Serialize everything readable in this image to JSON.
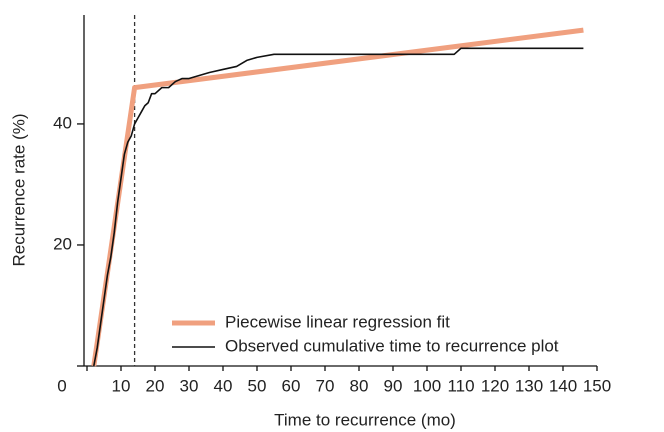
{
  "chart_data": {
    "type": "line",
    "x_label": "Time to recurrence (mo)",
    "y_label": "Recurrence rate (%)",
    "xlim": [
      0,
      150
    ],
    "ylim": [
      0,
      58
    ],
    "xticks": [
      0,
      10,
      20,
      30,
      40,
      50,
      60,
      70,
      80,
      90,
      100,
      110,
      120,
      130,
      140,
      150
    ],
    "yticks": [
      0,
      20,
      40
    ],
    "breakpoint": 14,
    "series": [
      {
        "name": "Piecewise linear regression fit",
        "color": "#f0a07f",
        "width": 5,
        "x": [
          2,
          14,
          146
        ],
        "values": [
          0,
          46,
          55.5
        ]
      },
      {
        "name": "Observed cumulative time to recurrence plot",
        "color": "#111111",
        "width": 1.6,
        "x": [
          2,
          3,
          4,
          5,
          6,
          7,
          8,
          9,
          10,
          11,
          12,
          13,
          14,
          15,
          16,
          17,
          18,
          19,
          20,
          22,
          24,
          26,
          28,
          30,
          33,
          36,
          40,
          44,
          47,
          50,
          55,
          60,
          80,
          100,
          108,
          110,
          146
        ],
        "values": [
          0,
          3,
          7,
          11,
          15,
          18,
          22,
          27,
          31,
          35,
          37,
          38,
          40,
          41,
          42,
          43,
          43.5,
          45,
          45,
          46,
          46,
          47,
          47.5,
          47.5,
          48,
          48.5,
          49,
          49.5,
          50.5,
          51,
          51.5,
          51.5,
          51.5,
          51.5,
          51.5,
          52.5,
          52.5
        ]
      }
    ]
  }
}
